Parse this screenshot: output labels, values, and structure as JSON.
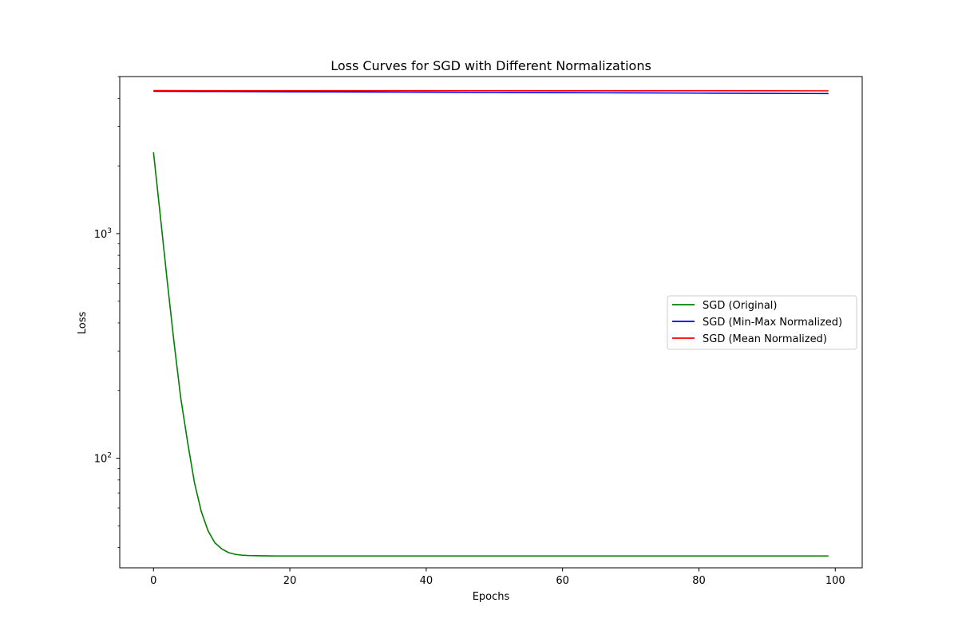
{
  "chart_data": {
    "type": "line",
    "title": "Loss Curves for SGD with Different Normalizations",
    "xlabel": "Epochs",
    "ylabel": "Loss",
    "xlim": [
      -4.95,
      103.95
    ],
    "ylim": [
      32.5,
      5000
    ],
    "yscale": "log",
    "xticks": [
      0,
      20,
      40,
      60,
      80,
      100
    ],
    "yticks": [
      {
        "value": 100,
        "base": "10",
        "exp": "2"
      },
      {
        "value": 1000,
        "base": "10",
        "exp": "3"
      }
    ],
    "grid": false,
    "legend": "center-right",
    "series": [
      {
        "name": "SGD (Original)",
        "color": "#008000",
        "x": [
          0,
          1,
          2,
          3,
          4,
          5,
          6,
          7,
          8,
          9,
          10,
          11,
          12,
          13,
          14,
          15,
          16,
          17,
          18,
          20,
          30,
          40,
          50,
          60,
          70,
          80,
          90,
          99
        ],
        "y": [
          2300,
          1200,
          620,
          330,
          185,
          118,
          78,
          58,
          47.5,
          42,
          39.5,
          38,
          37.3,
          37,
          36.85,
          36.8,
          36.75,
          36.72,
          36.7,
          36.7,
          36.7,
          36.7,
          36.7,
          36.7,
          36.7,
          36.7,
          36.7,
          36.7
        ]
      },
      {
        "name": "SGD (Min-Max Normalized)",
        "color": "#0000ff",
        "x": [
          0,
          10,
          20,
          30,
          40,
          50,
          60,
          70,
          80,
          90,
          99
        ],
        "y": [
          4300,
          4290,
          4280,
          4270,
          4260,
          4250,
          4240,
          4230,
          4220,
          4210,
          4200
        ]
      },
      {
        "name": "SGD (Mean Normalized)",
        "color": "#ff0000",
        "x": [
          0,
          10,
          20,
          30,
          40,
          50,
          60,
          70,
          80,
          90,
          99
        ],
        "y": [
          4330,
          4329,
          4328,
          4327,
          4326,
          4325,
          4324,
          4323,
          4322,
          4321,
          4320
        ]
      }
    ]
  }
}
